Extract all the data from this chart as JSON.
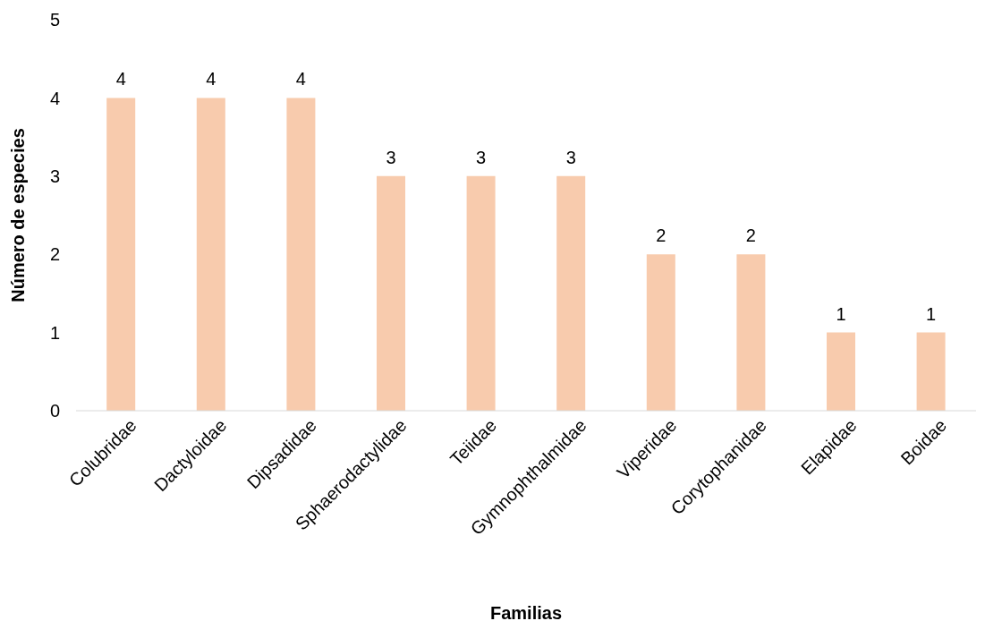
{
  "chart_data": {
    "type": "bar",
    "xlabel": "Familias",
    "ylabel": "Número de especies",
    "categories": [
      "Colubridae",
      "Dactyloidae",
      "Dipsadidae",
      "Sphaerodactylidae",
      "Teiidae",
      "Gymnophthalmidae",
      "Viperidae",
      "Corytophanidae",
      "Elapidae",
      "Boidae"
    ],
    "values": [
      4,
      4,
      4,
      3,
      3,
      3,
      2,
      2,
      1,
      1
    ],
    "color": "#f8cbad",
    "ylim": [
      0,
      5
    ],
    "yticks": [
      0,
      1,
      2,
      3,
      4,
      5
    ],
    "grid": false,
    "data_labels": true
  }
}
